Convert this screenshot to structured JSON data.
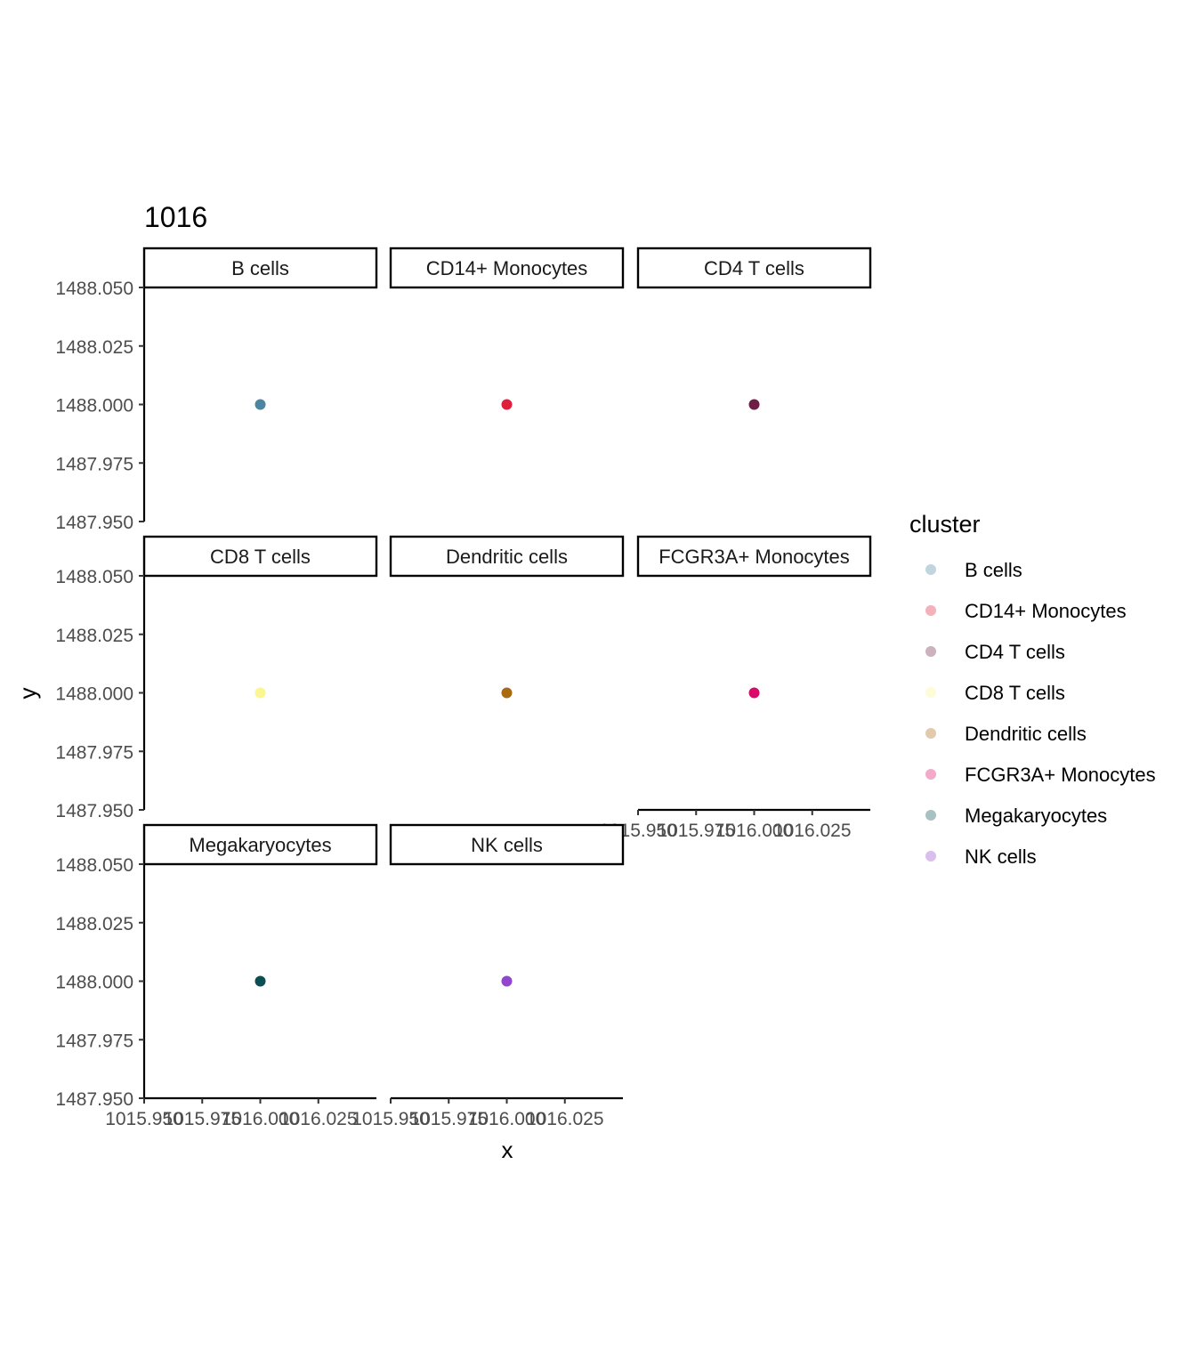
{
  "chart_data": {
    "type": "scatter",
    "title": "1016",
    "xlabel": "x",
    "ylabel": "y",
    "xlim": [
      1015.95,
      1016.05
    ],
    "ylim": [
      1487.95,
      1488.05
    ],
    "x_ticks": [
      1015.95,
      1015.975,
      1016.0,
      1016.025
    ],
    "x_tick_labels": [
      "1015.950",
      "1015.975",
      "1016.000",
      "1016.025"
    ],
    "y_ticks": [
      1487.95,
      1487.975,
      1488.0,
      1488.025,
      1488.05
    ],
    "y_tick_labels": [
      "1487.950",
      "1487.975",
      "1488.000",
      "1488.025",
      "1488.050"
    ],
    "facet_ncol": 3,
    "legend_position": "right",
    "legend": {
      "title": "cluster",
      "entries": [
        "B cells",
        "CD14+ Monocytes",
        "CD4 T cells",
        "CD8 T cells",
        "Dendritic cells",
        "FCGR3A+ Monocytes",
        "Megakaryocytes",
        "NK cells"
      ]
    },
    "panels": [
      {
        "label": "B cells",
        "color": "#4A86A1",
        "points": [
          {
            "x": 1016.0,
            "y": 1488.0
          }
        ]
      },
      {
        "label": "CD14+ Monocytes",
        "color": "#E0203A",
        "points": [
          {
            "x": 1016.0,
            "y": 1488.0
          }
        ]
      },
      {
        "label": "CD4 T cells",
        "color": "#6E1F45",
        "points": [
          {
            "x": 1016.0,
            "y": 1488.0
          }
        ]
      },
      {
        "label": "CD8 T cells",
        "color": "#FCF68E",
        "points": [
          {
            "x": 1016.0,
            "y": 1488.0
          }
        ]
      },
      {
        "label": "Dendritic cells",
        "color": "#A86B12",
        "points": [
          {
            "x": 1016.0,
            "y": 1488.0
          }
        ]
      },
      {
        "label": "FCGR3A+ Monocytes",
        "color": "#DB0A68",
        "points": [
          {
            "x": 1016.0,
            "y": 1488.0
          }
        ]
      },
      {
        "label": "Megakaryocytes",
        "color": "#0B4E53",
        "points": [
          {
            "x": 1016.0,
            "y": 1488.0
          }
        ]
      },
      {
        "label": "NK cells",
        "color": "#9245CE",
        "points": [
          {
            "x": 1016.0,
            "y": 1488.0
          }
        ]
      }
    ]
  }
}
